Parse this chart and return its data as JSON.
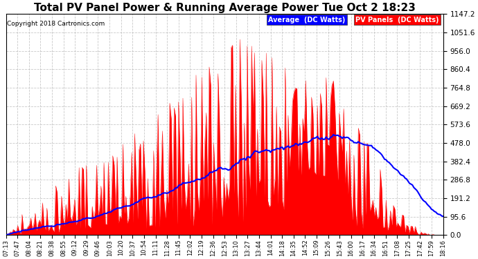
{
  "title": "Total PV Panel Power & Running Average Power Tue Oct 2 18:23",
  "copyright": "Copyright 2018 Cartronics.com",
  "legend_avg": "Average  (DC Watts)",
  "legend_pv": "PV Panels  (DC Watts)",
  "ymax": 1147.2,
  "ymin": 0.0,
  "yticks": [
    0.0,
    95.6,
    191.2,
    286.8,
    382.4,
    478.0,
    573.6,
    669.2,
    764.8,
    860.4,
    956.0,
    1051.6,
    1147.2
  ],
  "bg_color": "#ffffff",
  "plot_bg_color": "#ffffff",
  "grid_color": "#bbbbbb",
  "pv_color": "#ff0000",
  "avg_color": "#0000ff",
  "title_fontsize": 11,
  "x_labels": [
    "07:13",
    "07:47",
    "08:04",
    "08:21",
    "08:38",
    "08:55",
    "09:12",
    "09:29",
    "09:46",
    "10:03",
    "10:20",
    "10:37",
    "10:54",
    "11:11",
    "11:28",
    "11:45",
    "12:02",
    "12:19",
    "12:36",
    "12:53",
    "13:10",
    "13:27",
    "13:44",
    "14:01",
    "14:18",
    "14:35",
    "14:52",
    "15:09",
    "15:26",
    "15:43",
    "16:00",
    "16:17",
    "16:34",
    "16:51",
    "17:08",
    "17:25",
    "17:42",
    "17:59",
    "18:16"
  ]
}
